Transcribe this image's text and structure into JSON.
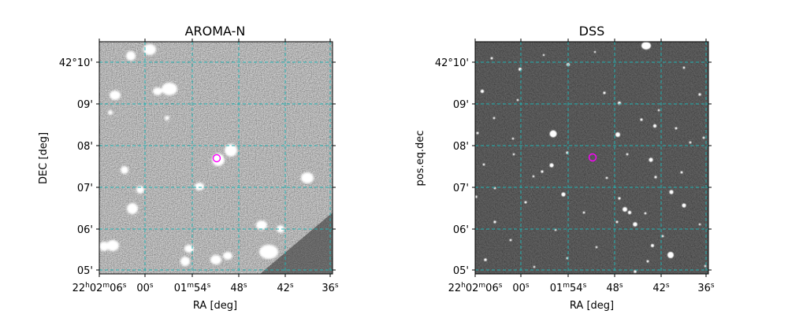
{
  "panels": [
    {
      "title": "AROMA-N",
      "xlabel": "RA [deg]",
      "ylabel": "DEC [deg]",
      "ra_ticks": [
        {
          "h": "22",
          "hu": "h",
          "m": "02",
          "mu": "m",
          "s": "06",
          "su": "s"
        },
        {
          "s": "00",
          "su": "s"
        },
        {
          "m": "01",
          "mu": "m",
          "s": "54",
          "su": "s"
        },
        {
          "s": "48",
          "su": "s"
        },
        {
          "s": "42",
          "su": "s"
        },
        {
          "s": "36",
          "su": "s"
        }
      ],
      "dec_ticks": [
        "42°10'",
        "09'",
        "08'",
        "07'",
        "06'",
        "05'"
      ],
      "image": "grayscale-sky-noisy"
    },
    {
      "title": "DSS",
      "xlabel": "RA [deg]",
      "ylabel": "pos.eq.dec",
      "ra_ticks": [
        {
          "h": "22",
          "hu": "h",
          "m": "02",
          "mu": "m",
          "s": "06",
          "su": "s"
        },
        {
          "s": "00",
          "su": "s"
        },
        {
          "m": "01",
          "mu": "m",
          "s": "54",
          "su": "s"
        },
        {
          "s": "48",
          "su": "s"
        },
        {
          "s": "42",
          "su": "s"
        },
        {
          "s": "36",
          "su": "s"
        }
      ],
      "dec_ticks": [
        "42°10'",
        "09'",
        "08'",
        "07'",
        "06'",
        "05'"
      ],
      "image": "grayscale-sky-dark"
    }
  ],
  "colors": {
    "grid": "#20b2b2",
    "marker": "#ff00ff",
    "frame": "#000000"
  }
}
